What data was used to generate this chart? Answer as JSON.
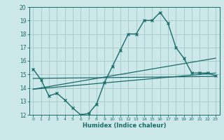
{
  "xlabel": "Humidex (Indice chaleur)",
  "bg_color": "#cce8e8",
  "grid_color": "#aacccc",
  "line_color": "#1a6b6b",
  "xlim": [
    -0.5,
    23.5
  ],
  "ylim": [
    12,
    20
  ],
  "xticks": [
    0,
    1,
    2,
    3,
    4,
    5,
    6,
    7,
    8,
    9,
    10,
    11,
    12,
    13,
    14,
    15,
    16,
    17,
    18,
    19,
    20,
    21,
    22,
    23
  ],
  "yticks": [
    12,
    13,
    14,
    15,
    16,
    17,
    18,
    19,
    20
  ],
  "hours": [
    0,
    1,
    2,
    3,
    4,
    5,
    6,
    7,
    8,
    9,
    10,
    11,
    12,
    13,
    14,
    15,
    16,
    17,
    18,
    19,
    20,
    21,
    22,
    23
  ],
  "humidex": [
    15.4,
    14.6,
    13.4,
    13.6,
    13.1,
    12.5,
    12.0,
    12.1,
    12.8,
    14.4,
    15.6,
    16.8,
    18.0,
    18.0,
    19.0,
    19.0,
    19.6,
    18.8,
    17.0,
    16.2,
    15.1,
    15.1,
    15.1,
    14.9
  ],
  "line1_x": [
    0,
    23
  ],
  "line1_y": [
    14.7,
    14.85
  ],
  "line2_x": [
    0,
    23
  ],
  "line2_y": [
    13.9,
    16.2
  ],
  "line3_x": [
    0,
    23
  ],
  "line3_y": [
    13.9,
    15.1
  ]
}
